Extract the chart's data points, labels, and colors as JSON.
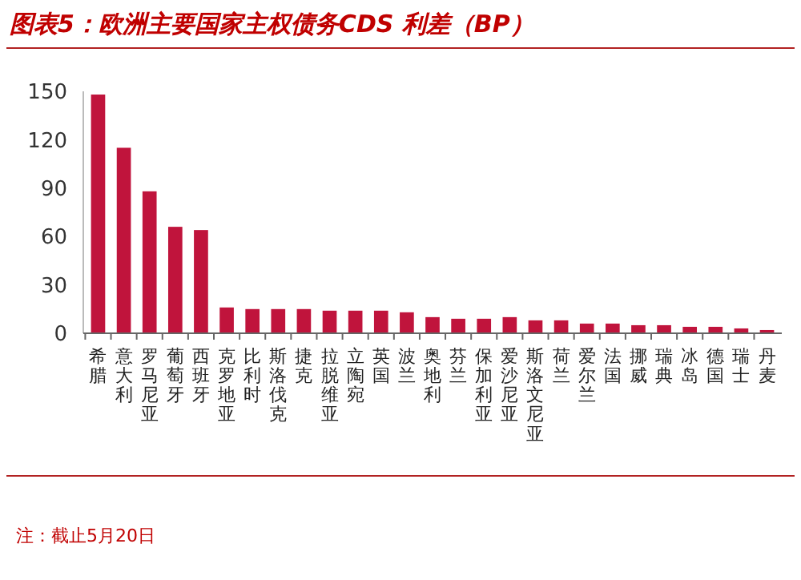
{
  "chart_data": {
    "type": "bar",
    "title": "图表5：欧洲主要国家主权债务CDS 利差（BP）",
    "categories": [
      "希腊",
      "意大利",
      "罗马尼亚",
      "葡萄牙",
      "西班牙",
      "克罗地亚",
      "比利时",
      "斯洛伐克",
      "捷克",
      "拉脱维亚",
      "立陶宛",
      "英国",
      "波兰",
      "奥地利",
      "芬兰",
      "保加利亚",
      "爱沙尼亚",
      "斯洛文尼亚",
      "荷兰",
      "爱尔兰",
      "法国",
      "挪威",
      "瑞典",
      "冰岛",
      "德国",
      "瑞士",
      "丹麦"
    ],
    "values": [
      148,
      115,
      88,
      66,
      64,
      16,
      15,
      15,
      15,
      14,
      14,
      14,
      13,
      10,
      9,
      9,
      10,
      8,
      8,
      6,
      6,
      5,
      5,
      4,
      4,
      3,
      2
    ],
    "color": "#c0143c",
    "ylim": [
      0,
      150
    ],
    "yticks": [
      0,
      30,
      60,
      90,
      120,
      150
    ],
    "annotations": [
      "注：截止5月20日"
    ]
  }
}
